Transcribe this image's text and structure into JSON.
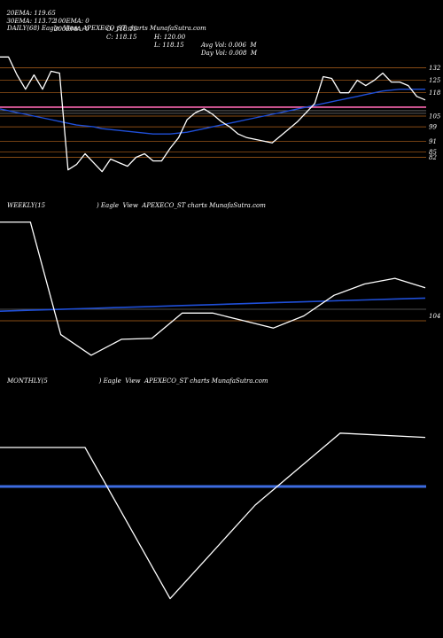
{
  "header": {
    "ema20": "20EMA: 119.65",
    "ema100": "100EMA: 0",
    "open": "O: 118.15",
    "high": "H: 120.00",
    "avg_vol": "Avg Vol: 0.006  M",
    "ema30": "30EMA: 113.72",
    "ema200": "200EMA: 0",
    "close": "C: 118.15",
    "low": "L: 118.15",
    "day_vol": "Day Vol: 0.008  M"
  },
  "colors": {
    "background": "#000000",
    "price": "#ffffff",
    "ma": "#1f4fd8",
    "level": "#b5651d",
    "pink": "#ff69b4",
    "grey": "#9a9a9a"
  },
  "chart_data": [
    {
      "type": "line",
      "title": "DAILY(68) Eagle  View  APEXECO_ST charts MunafaSutra.com",
      "levels": [
        "132",
        "125",
        "118",
        "105",
        "99",
        "91",
        "85",
        "82"
      ],
      "price": [
        138,
        138,
        128,
        120,
        128,
        120,
        130,
        129,
        75,
        78,
        84,
        79,
        74,
        81,
        79,
        77,
        82,
        84,
        80,
        80,
        87,
        93,
        103,
        107,
        109,
        106,
        102,
        99,
        95,
        93,
        92,
        91,
        90,
        94,
        98,
        102,
        107,
        112,
        127,
        126,
        118,
        118,
        125,
        122,
        125,
        129,
        124,
        124,
        122,
        116,
        114
      ],
      "ma": [
        109,
        108,
        107,
        106,
        105,
        104,
        103,
        102,
        101,
        100,
        99.5,
        99,
        98,
        97.5,
        97,
        96.5,
        96,
        95.5,
        95,
        95,
        95,
        95.5,
        96,
        97,
        98,
        99,
        100,
        101,
        102,
        103,
        104,
        105,
        106,
        107,
        108,
        109,
        110,
        111,
        112,
        113,
        114,
        115,
        116,
        117,
        118,
        119,
        119.5,
        120,
        120,
        120,
        120
      ]
    },
    {
      "type": "line",
      "title": "WEEKLY(15                          ) Eagle  View  APEXECO_ST charts MunafaSutra.com",
      "levels": [
        "104"
      ],
      "price": [
        260,
        260,
        140,
        118,
        135,
        136,
        163,
        163,
        155,
        147,
        160,
        182,
        194,
        200,
        190
      ],
      "ma": [
        165,
        166,
        167,
        168,
        169,
        170,
        171,
        172,
        173,
        174,
        175,
        176,
        177,
        178,
        179
      ]
    },
    {
      "type": "line",
      "title": "MONTHLY(5                          ) Eagle  View  APEXECO_ST charts MunafaSutra.com",
      "levels": [],
      "price": [
        300,
        300,
        90,
        220,
        320,
        314
      ],
      "ma": [
        200,
        200,
        200,
        200,
        200,
        200
      ]
    }
  ]
}
